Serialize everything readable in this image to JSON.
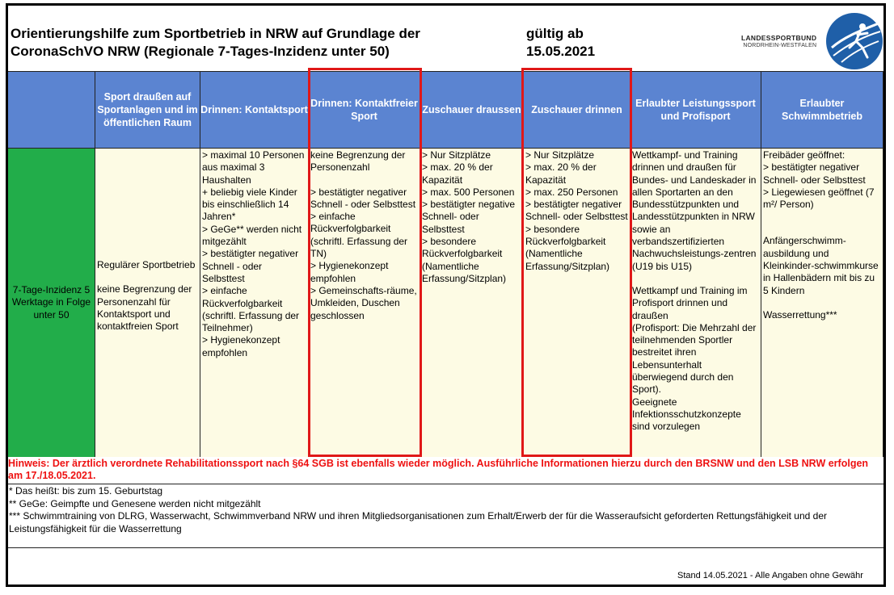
{
  "header": {
    "title_line1": "Orientierungshilfe zum Sportbetrieb in NRW auf Grundlage der",
    "title_line2": "CoronaSchVO NRW (Regionale 7-Tages-Inzidenz unter 50)",
    "valid_line1": "gültig ab",
    "valid_line2": "15.05.2021",
    "logo_line1": "LANDESSPORTBUND",
    "logo_line2": "NORDRHEIN-WESTFALEN"
  },
  "table": {
    "headers": [
      "",
      "Sport draußen auf Sportanlagen und im öffentlichen Raum",
      "Drinnen: Kontaktsport",
      "Drinnen: Kontaktfreier Sport",
      "Zuschauer draussen",
      "Zuschauer drinnen",
      "Erlaubter Leistungssport und Profisport",
      "Erlaubter Schwimmbetrieb"
    ],
    "row_label": "7-Tage-Inzidenz 5 Werktage in Folge unter 50",
    "cells": [
      [
        "Regulärer Sportbetrieb",
        "",
        "keine Begrenzung der Personenzahl für Kontaktsport und kontaktfreien Sport"
      ],
      [
        "> maximal 10 Personen",
        "aus maximal 3 Haushalten",
        "+ beliebig viele Kinder bis einschließlich 14 Jahren*",
        "> GeGe** werden nicht mitgezählt",
        "> bestätigter negativer Schnell - oder Selbsttest",
        "> einfache Rückverfolgbarkeit (schriftl. Erfassung der Teilnehmer)",
        "> Hygienekonzept empfohlen"
      ],
      [
        "keine Begrenzung der Personenzahl",
        "",
        "> bestätigter negativer Schnell - oder Selbsttest",
        "> einfache Rückverfolgbarkeit (schriftl. Erfassung der TN)",
        "> Hygienekonzept empfohlen",
        "> Gemeinschafts-räume, Umkleiden, Duschen geschlossen"
      ],
      [
        "> Nur Sitzplätze",
        "> max. 20 % der Kapazität",
        "> max. 500 Personen",
        "> bestätigter negative Schnell- oder Selbsttest",
        "> besondere Rückverfolgbarkeit (Namentliche Erfassung/Sitzplan)"
      ],
      [
        "> Nur Sitzplätze",
        "> max. 20 % der Kapazität",
        "> max. 250 Personen",
        "> bestätigter negativer Schnell- oder Selbsttest",
        "> besondere Rückverfolgbarkeit (Namentliche Erfassung/Sitzplan)"
      ],
      [
        "Wettkampf- und Training drinnen und draußen für Bundes- und Landeskader in allen Sportarten an den Bundesstützpunkten und Landesstützpunkten in NRW sowie an verbandszertifizierten Nachwuchsleistungs-zentren (U19 bis U15)",
        "",
        "Wettkampf und Training im Profisport drinnen und draußen",
        "(Profisport: Die Mehrzahl der teilnehmenden Sportler bestreitet ihren Lebensunterhalt überwiegend durch den Sport).",
        "Geeignete Infektionsschutzkonzepte sind vorzulegen"
      ],
      [
        "Freibäder geöffnet:",
        "> bestätigter negativer Schnell- oder Selbsttest",
        "> Liegewiesen geöffnet (7 m²/ Person)",
        "",
        "",
        "Anfängerschwimm-ausbildung und Kleinkinder-schwimmkurse in Hallenbädern mit bis zu 5 Kindern",
        "",
        "Wasserrettung***"
      ]
    ]
  },
  "hint": "Hinweis: Der ärztlich verordnete Rehabilitationssport nach §64 SGB ist ebenfalls wieder möglich. Ausführliche Informationen hierzu durch den BRSNW und den LSB NRW erfolgen am 17./18.05.2021.",
  "footnotes": [
    "* Das heißt: bis zum 15. Geburtstag",
    "** GeGe: Geimpfte und Genesene werden nicht mitgezählt",
    "*** Schwimmtraining von DLRG, Wasserwacht, Schwimmverband NRW und ihren Mitgliedsorganisationen zum Erhalt/Erwerb der für die Wasseraufsicht geforderten Rettungsfähigkeit und der Leistungsfähigkeit für die Wasserrettung"
  ],
  "stand": "Stand 14.05.2021 - Alle Angaben ohne Gewähr",
  "colors": {
    "header_blue": "#5b84d1",
    "row_green": "#22ad4a",
    "cell_beige": "#fdfbe4",
    "highlight_red": "#e01818",
    "hint_red": "#ee1111"
  }
}
